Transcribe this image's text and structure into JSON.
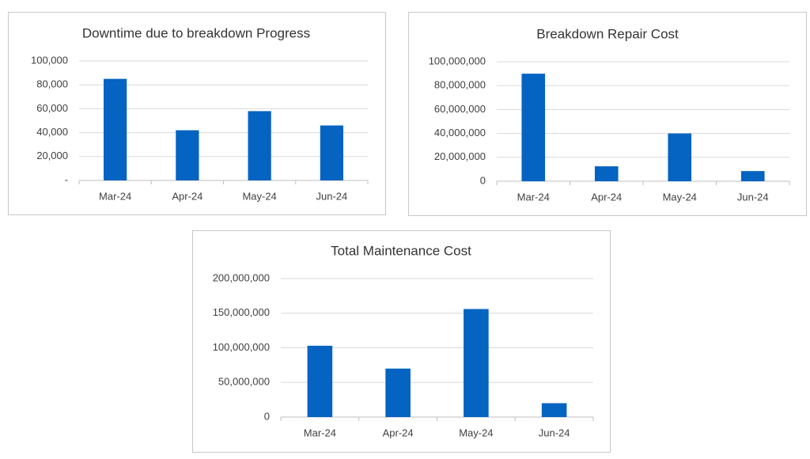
{
  "chart_data": [
    {
      "type": "bar",
      "title": "Downtime due to breakdown Progress",
      "categories": [
        "Mar-24",
        "Apr-24",
        "May-24",
        "Jun-24"
      ],
      "values": [
        85000,
        42000,
        58000,
        46000
      ],
      "color": "#0563c1",
      "ylim": [
        0,
        100000
      ],
      "yticks": [
        {
          "value": 0,
          "label": "-"
        },
        {
          "value": 20000,
          "label": "20,000"
        },
        {
          "value": 40000,
          "label": "40,000"
        },
        {
          "value": 60000,
          "label": "60,000"
        },
        {
          "value": 80000,
          "label": "80,000"
        },
        {
          "value": 100000,
          "label": "100,000"
        }
      ],
      "grid": true
    },
    {
      "type": "bar",
      "title": "Breakdown Repair Cost",
      "categories": [
        "Mar-24",
        "Apr-24",
        "May-24",
        "Jun-24"
      ],
      "values": [
        90000000,
        12500000,
        40000000,
        8500000
      ],
      "color": "#0563c1",
      "ylim": [
        0,
        100000000
      ],
      "yticks": [
        0,
        {
          "value": 20000000,
          "label": "20,000,000"
        },
        {
          "value": 40000000,
          "label": "40,000,000"
        },
        {
          "value": 60000000,
          "label": "60,000,000"
        },
        {
          "value": 80000000,
          "label": "80,000,000"
        },
        {
          "value": 100000000,
          "label": "100,000,000"
        }
      ],
      "grid": true
    },
    {
      "type": "bar",
      "title": "Total Maintenance Cost",
      "categories": [
        "Mar-24",
        "Apr-24",
        "May-24",
        "Jun-24"
      ],
      "values": [
        103000000,
        70000000,
        156000000,
        20000000
      ],
      "color": "#0563c1",
      "ylim": [
        0,
        200000000
      ],
      "yticks": [
        0,
        {
          "value": 50000000,
          "label": "50,000,000"
        },
        {
          "value": 100000000,
          "label": "100,000,000"
        },
        {
          "value": 150000000,
          "label": "150,000,000"
        },
        {
          "value": 200000000,
          "label": "200,000,000"
        }
      ],
      "grid": true
    }
  ]
}
